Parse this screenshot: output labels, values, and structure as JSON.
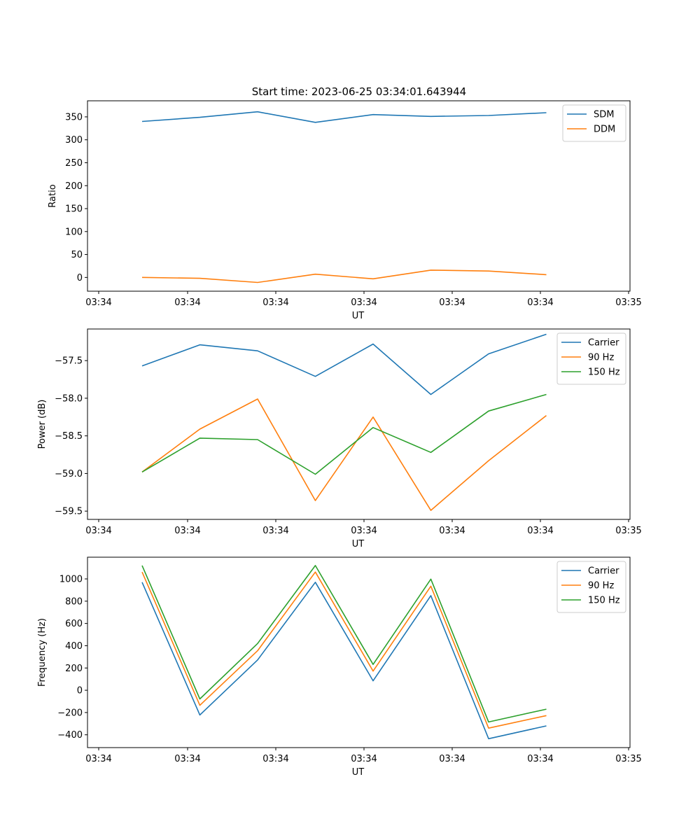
{
  "figure": {
    "title": "Start time: 2023-06-25 03:34:01.643944"
  },
  "chart_data": [
    {
      "type": "line",
      "xlabel": "UT",
      "ylabel": "Ratio",
      "x_tick_labels": [
        "03:34",
        "03:34",
        "03:34",
        "03:34",
        "03:34",
        "03:34",
        "03:35"
      ],
      "ylim": [
        -30,
        385
      ],
      "yticks": [
        0,
        50,
        100,
        150,
        200,
        250,
        300,
        350
      ],
      "legend_position": "top-right",
      "grid": false,
      "series": [
        {
          "name": "SDM",
          "color": "#1f77b4",
          "values": [
            340,
            349,
            361,
            338,
            355,
            351,
            353,
            359
          ]
        },
        {
          "name": "DDM",
          "color": "#ff7f0e",
          "values": [
            0,
            -2,
            -11,
            7,
            -3,
            16,
            14,
            6
          ]
        }
      ]
    },
    {
      "type": "line",
      "xlabel": "UT",
      "ylabel": "Power (dB)",
      "x_tick_labels": [
        "03:34",
        "03:34",
        "03:34",
        "03:34",
        "03:34",
        "03:34",
        "03:35"
      ],
      "ylim": [
        -59.61,
        -57.08
      ],
      "yticks": [
        -59.5,
        -59.0,
        -58.5,
        -58.0,
        -57.5
      ],
      "ytick_labels": [
        "−59.5",
        "−59.0",
        "−58.5",
        "−58.0",
        "−57.5"
      ],
      "legend_position": "top-right",
      "grid": false,
      "series": [
        {
          "name": "Carrier",
          "color": "#1f77b4",
          "values": [
            -57.57,
            -57.29,
            -57.37,
            -57.71,
            -57.28,
            -57.95,
            -57.41,
            -57.15
          ]
        },
        {
          "name": "90 Hz",
          "color": "#ff7f0e",
          "values": [
            -58.98,
            -58.41,
            -58.01,
            -59.36,
            -58.25,
            -59.49,
            -58.83,
            -58.23
          ]
        },
        {
          "name": "150 Hz",
          "color": "#2ca02c",
          "values": [
            -58.98,
            -58.53,
            -58.55,
            -59.01,
            -58.39,
            -58.72,
            -58.17,
            -57.95
          ]
        }
      ]
    },
    {
      "type": "line",
      "xlabel": "UT",
      "ylabel": "Frequency (Hz)",
      "x_tick_labels": [
        "03:34",
        "03:34",
        "03:34",
        "03:34",
        "03:34",
        "03:34",
        "03:35"
      ],
      "ylim": [
        -515,
        1195
      ],
      "yticks": [
        -400,
        -200,
        0,
        200,
        400,
        600,
        800,
        1000
      ],
      "ytick_labels": [
        "−400",
        "−200",
        "0",
        "200",
        "400",
        "600",
        "800",
        "1000"
      ],
      "legend_position": "top-right",
      "grid": false,
      "series": [
        {
          "name": "Carrier",
          "color": "#1f77b4",
          "values": [
            970,
            -222,
            272,
            970,
            85,
            850,
            -435,
            -320
          ]
        },
        {
          "name": "90 Hz",
          "color": "#ff7f0e",
          "values": [
            1062,
            -135,
            355,
            1062,
            172,
            935,
            -340,
            -228
          ]
        },
        {
          "name": "150 Hz",
          "color": "#2ca02c",
          "values": [
            1120,
            -78,
            420,
            1120,
            232,
            998,
            -285,
            -170
          ]
        }
      ]
    }
  ]
}
